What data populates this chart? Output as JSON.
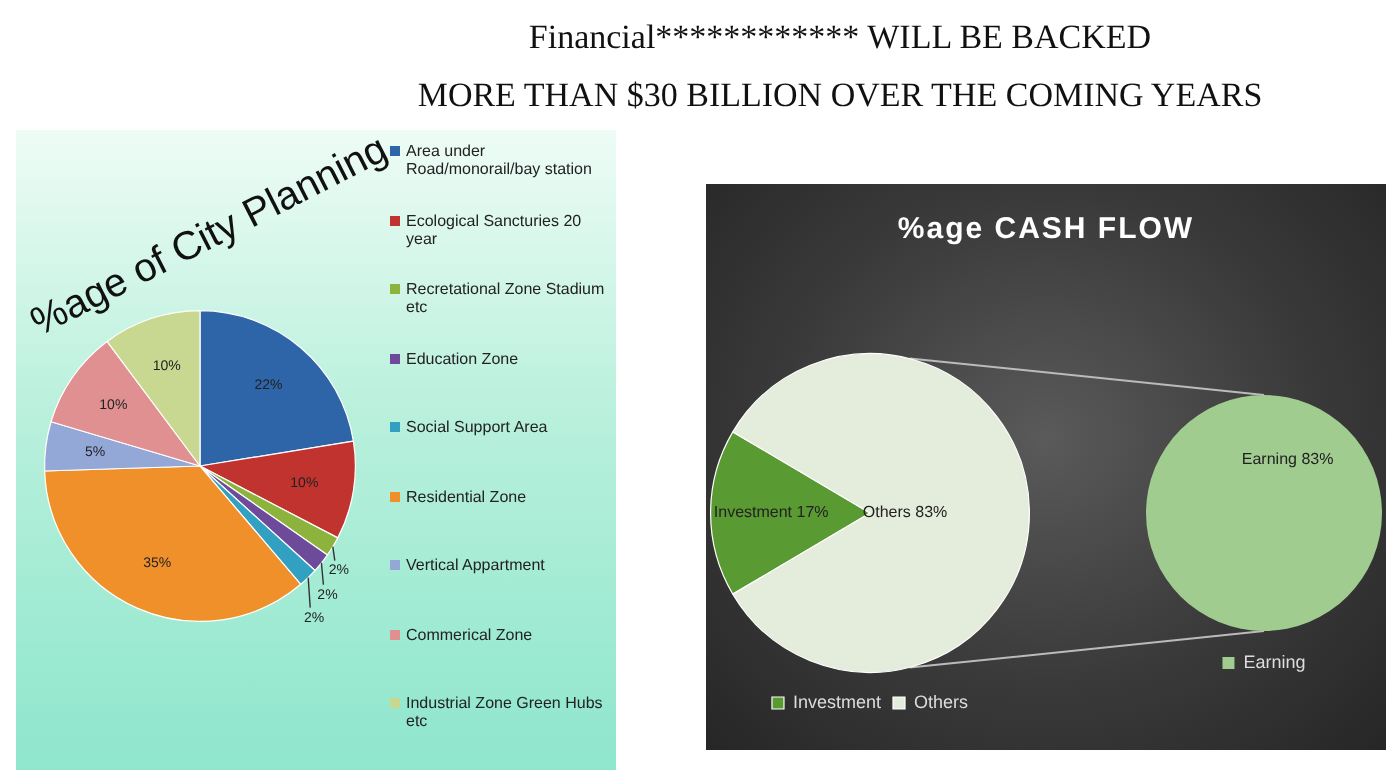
{
  "chart_data": [
    {
      "type": "other",
      "annotations": [
        "Financial************ WILL BE BACKED",
        "MORE THAN $30 BILLION OVER THE COMING YEARS"
      ]
    },
    {
      "type": "pie",
      "title": "%age of City Planning",
      "categories": [
        "Area under  Road/monorail/bay station",
        "Ecological Sancturies 20 year",
        "Recretational Zone Stadium etc",
        "Education Zone",
        "Social Support Area",
        "Residential Zone",
        "Vertical Appartment",
        "Commerical Zone",
        "Industrial Zone Green Hubs etc"
      ],
      "values": [
        22,
        10,
        2,
        2,
        2,
        35,
        5,
        10,
        10
      ],
      "colors": [
        "#2e64a8",
        "#c0332f",
        "#8cb43c",
        "#6e4a9a",
        "#32a0c0",
        "#f0902a",
        "#94a8d8",
        "#e09090",
        "#c8d890"
      ],
      "value_labels": [
        "22%",
        "10%",
        "2%",
        "2%",
        "2%",
        "35%",
        "5%",
        "10%",
        "10%"
      ],
      "legend": "right"
    },
    {
      "type": "pie",
      "title": "%age CASH FLOW",
      "categories": [
        "Investment",
        "Others"
      ],
      "values": [
        17,
        83
      ],
      "colors": [
        "#5a9a32",
        "#e4ecdc"
      ],
      "value_labels": [
        "Investment 17%",
        "Others 83%"
      ],
      "legend": "bottom"
    },
    {
      "type": "pie",
      "categories": [
        "Earning"
      ],
      "values": [
        83
      ],
      "colors": [
        "#a0cc90"
      ],
      "value_labels": [
        "Earning 83%"
      ],
      "legend": "bottom"
    }
  ]
}
